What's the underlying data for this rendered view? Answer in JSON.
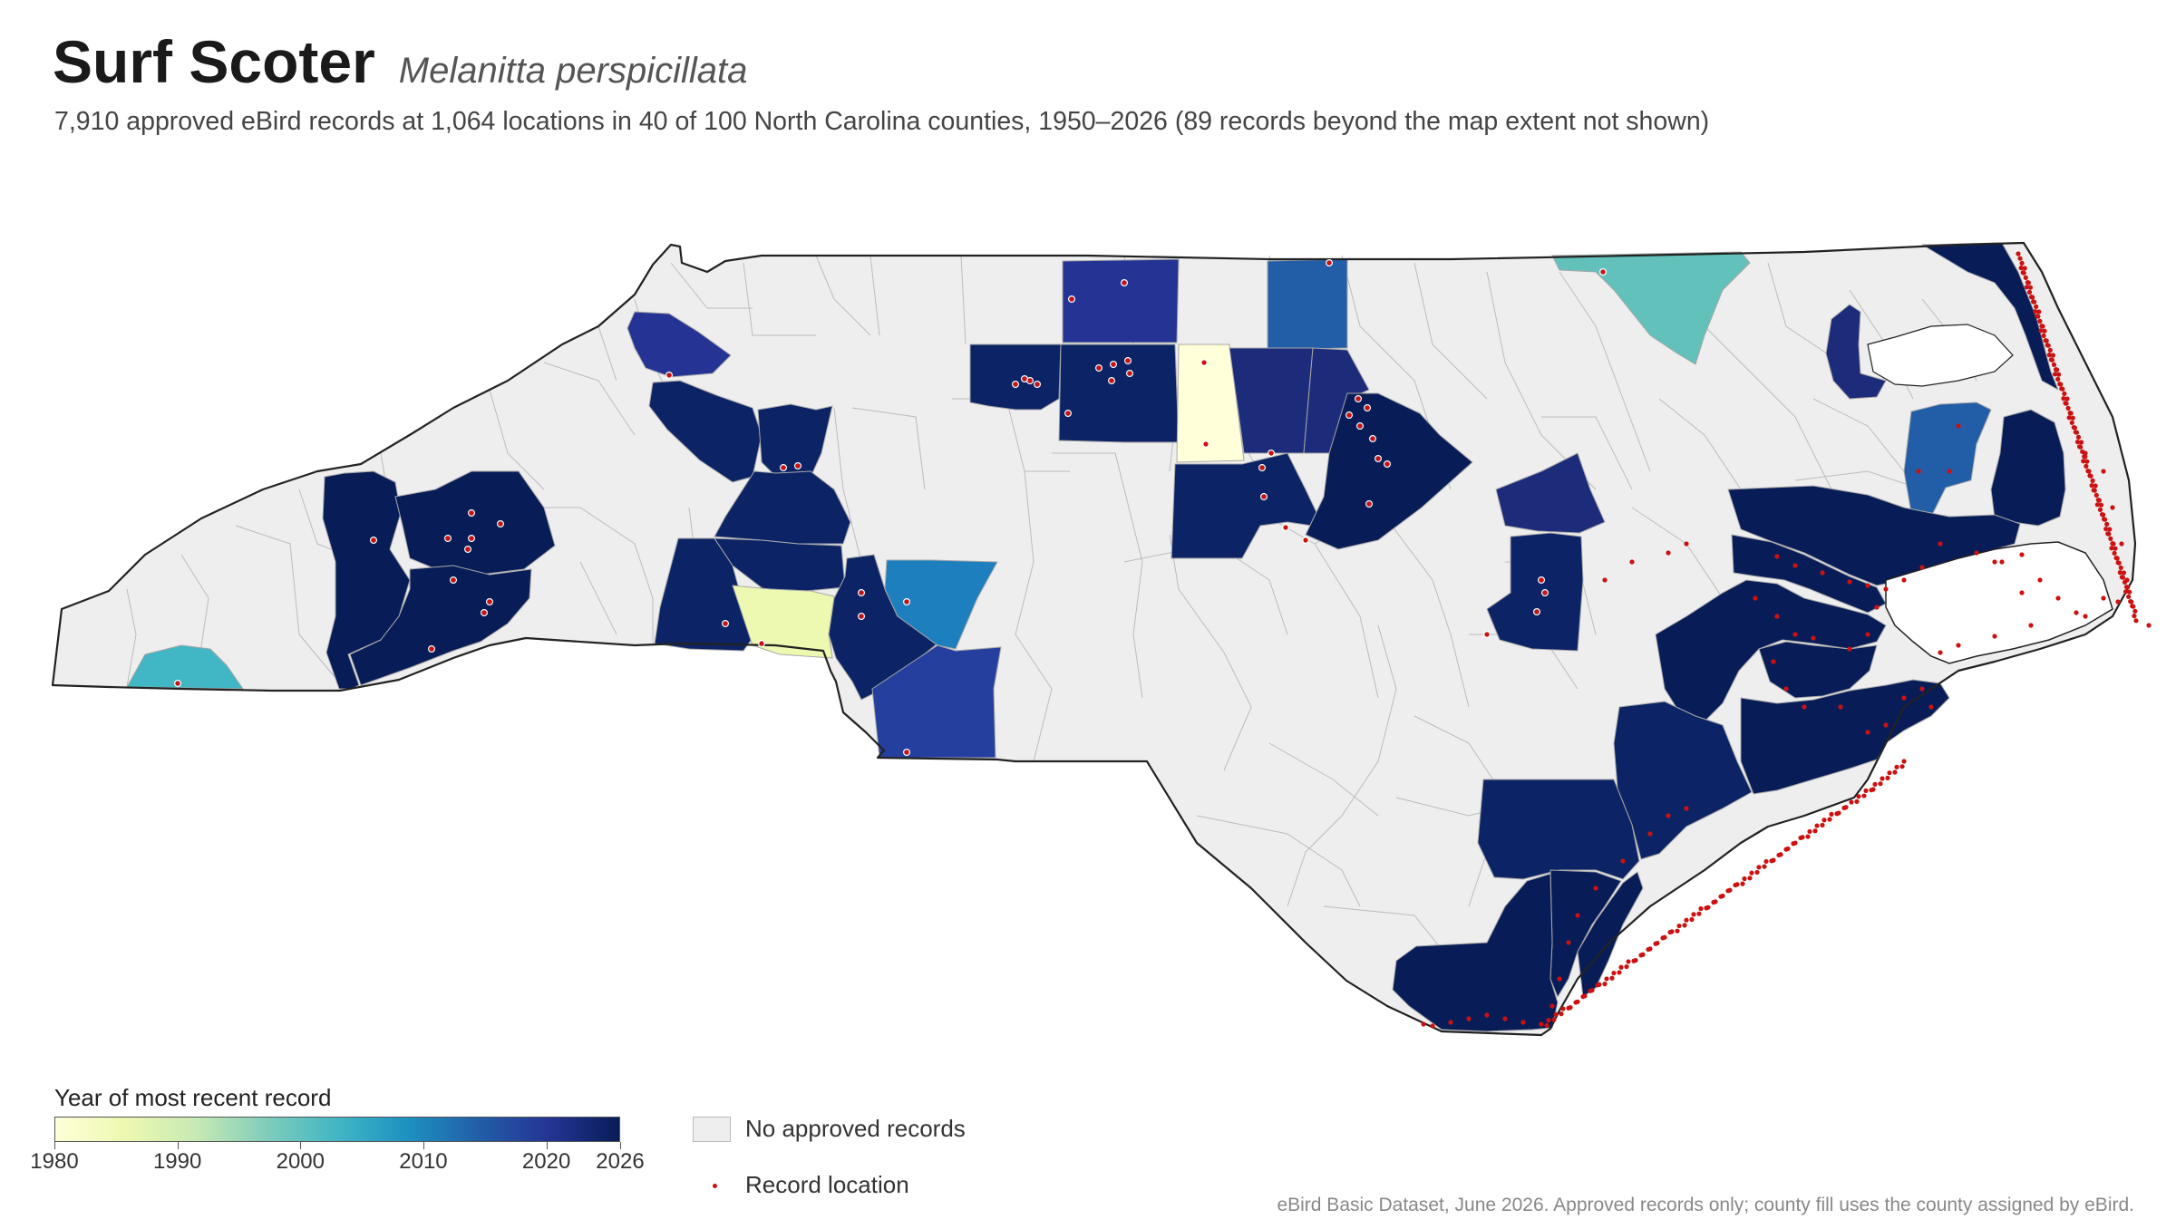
{
  "header": {
    "title": "Surf Scoter",
    "scientific_name": "Melanitta perspicillata",
    "subtitle": "7,910 approved eBird records at 1,064 locations in 40 of 100 North Carolina counties, 1950–2026 (89 records beyond the map extent not shown)"
  },
  "legend": {
    "title": "Year of most recent record",
    "scale_min": 1980,
    "scale_max": 2026,
    "ticks": [
      "1980",
      "1990",
      "2000",
      "2010",
      "2020",
      "2026"
    ],
    "no_records_label": "No approved records",
    "record_label": "Record location",
    "colors": {
      "ramp": [
        "#ffffd9",
        "#edf8b1",
        "#c7e9b4",
        "#7fcdbb",
        "#41b6c4",
        "#1d91c0",
        "#225ea8",
        "#253494",
        "#081d58"
      ],
      "no_records": "#eeeeee",
      "record": "#cc1111"
    }
  },
  "source": "eBird Basic Dataset, June 2026. Approved records only; county fill uses the county assigned by eBird.",
  "map_data": {
    "counties_with_records": [
      {
        "area": "far west",
        "year": 2004
      },
      {
        "area": "northwest mountains",
        "year": 2018
      },
      {
        "area": "western mountains a",
        "year": 2025
      },
      {
        "area": "western mountains b",
        "year": 2025
      },
      {
        "area": "western mountains c",
        "year": 2025
      },
      {
        "area": "foothills a",
        "year": 2022
      },
      {
        "area": "foothills b",
        "year": 2022
      },
      {
        "area": "foothills c",
        "year": 2022
      },
      {
        "area": "southwest piedmont a",
        "year": 2024
      },
      {
        "area": "southwest piedmont b",
        "year": 2023
      },
      {
        "area": "southwest piedmont c",
        "year": 1983
      },
      {
        "area": "southwest piedmont d",
        "year": 2024
      },
      {
        "area": "central piedmont",
        "year": 2008
      },
      {
        "area": "south piedmont",
        "year": 2017
      },
      {
        "area": "north piedmont a",
        "year": 2023
      },
      {
        "area": "north piedmont b",
        "year": 2024
      },
      {
        "area": "north piedmont c",
        "year": 2019
      },
      {
        "area": "north central a",
        "year": 1980
      },
      {
        "area": "north central b",
        "year": 2012
      },
      {
        "area": "north central c",
        "year": 2022
      },
      {
        "area": "north central d",
        "year": 2023
      },
      {
        "area": "research triangle a",
        "year": 2024
      },
      {
        "area": "research triangle b",
        "year": 2025
      },
      {
        "area": "northeast border",
        "year": 2001
      },
      {
        "area": "east central a",
        "year": 2021
      },
      {
        "area": "east central b",
        "year": 2024
      },
      {
        "area": "albemarle a",
        "year": 2022
      },
      {
        "area": "albemarle b",
        "year": 2011
      },
      {
        "area": "outer banks north",
        "year": 2026
      },
      {
        "area": "pamlico south",
        "year": 2026
      },
      {
        "area": "pamlico north",
        "year": 2026
      },
      {
        "area": "dare mainland",
        "year": 2026
      },
      {
        "area": "craven",
        "year": 2026
      },
      {
        "area": "pamlico county",
        "year": 2026
      },
      {
        "area": "carteret",
        "year": 2026
      },
      {
        "area": "onslow",
        "year": 2026
      },
      {
        "area": "duplin",
        "year": 2025
      },
      {
        "area": "pender",
        "year": 2026
      },
      {
        "area": "new hanover",
        "year": 2026
      },
      {
        "area": "brunswick",
        "year": 2026
      }
    ]
  }
}
